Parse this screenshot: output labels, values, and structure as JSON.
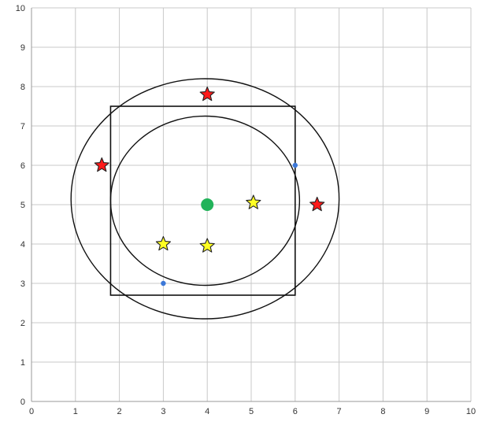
{
  "chart_data": {
    "type": "scatter",
    "title": "",
    "xlabel": "",
    "ylabel": "",
    "xlim": [
      0,
      10
    ],
    "ylim": [
      0,
      10
    ],
    "x_ticks": [
      "0",
      "1",
      "2",
      "3",
      "4",
      "5",
      "6",
      "7",
      "8",
      "9",
      "10"
    ],
    "y_ticks": [
      "0",
      "1",
      "2",
      "3",
      "4",
      "5",
      "6",
      "7",
      "8",
      "9",
      "10"
    ],
    "grid": true,
    "legend": "none",
    "series": [
      {
        "marker": "circle",
        "color": "#22b35a",
        "points": [
          {
            "x": 4.0,
            "y": 5.0
          }
        ]
      },
      {
        "marker": "star",
        "color": "#ff1a1a",
        "points": [
          {
            "x": 4.0,
            "y": 7.8
          },
          {
            "x": 1.6,
            "y": 6.0
          },
          {
            "x": 6.5,
            "y": 5.0
          }
        ]
      },
      {
        "marker": "star",
        "color": "#ffff22",
        "points": [
          {
            "x": 5.05,
            "y": 5.05
          },
          {
            "x": 3.0,
            "y": 4.0
          },
          {
            "x": 4.0,
            "y": 3.95
          }
        ]
      },
      {
        "marker": "dot",
        "color": "#3c78d8",
        "points": [
          {
            "x": 6.0,
            "y": 6.0
          },
          {
            "x": 3.0,
            "y": 3.0
          }
        ]
      }
    ],
    "shapes": [
      {
        "type": "circle",
        "cx": 3.95,
        "cy": 5.15,
        "r": 3.05,
        "stroke": "#111111"
      },
      {
        "type": "circle",
        "cx": 3.95,
        "cy": 5.1,
        "r": 2.15,
        "stroke": "#111111"
      },
      {
        "type": "rect",
        "x0": 1.8,
        "y0": 2.7,
        "x1": 6.0,
        "y1": 7.5,
        "stroke": "#111111"
      }
    ]
  }
}
